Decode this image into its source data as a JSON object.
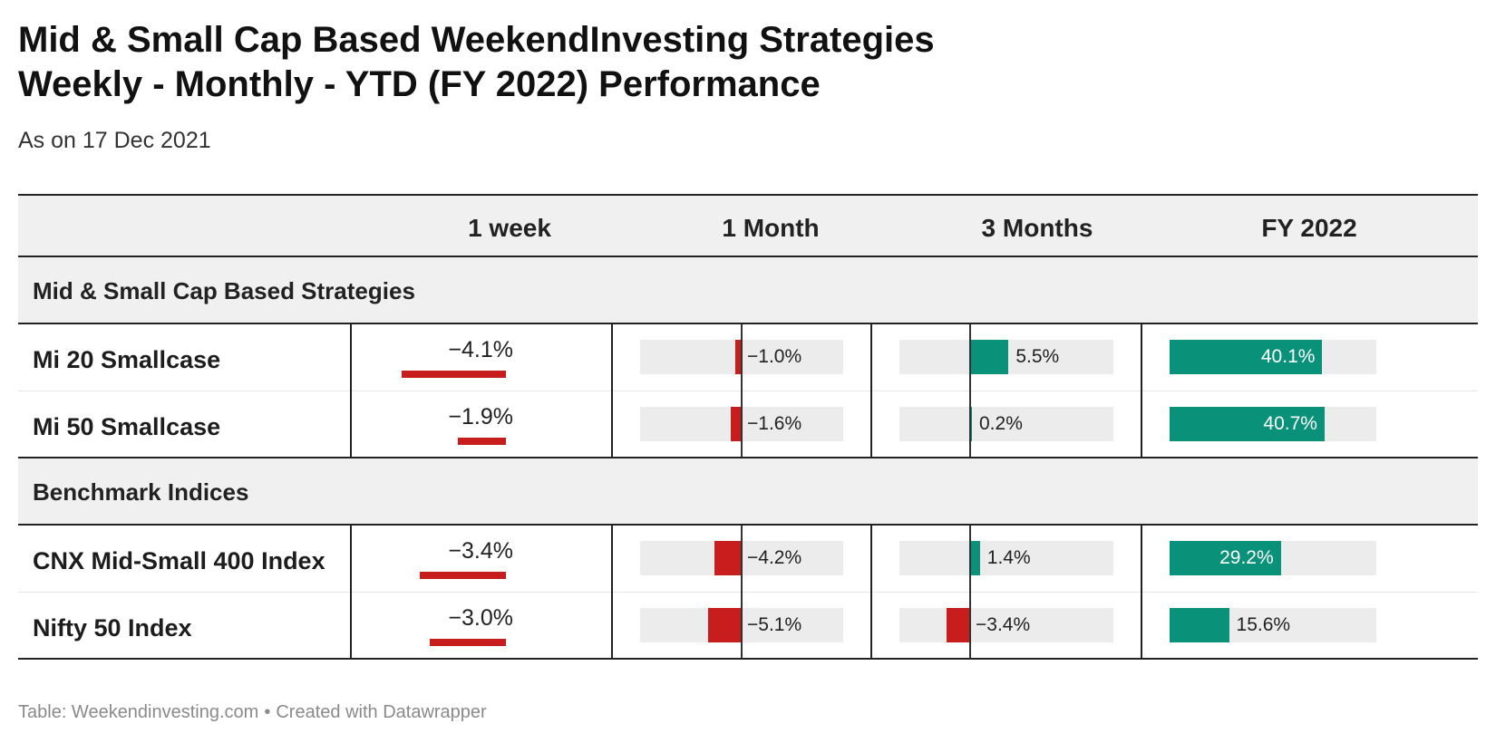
{
  "title_line1": "Mid & Small Cap Based WeekendInvesting Strategies",
  "title_line2": "Weekly - Monthly - YTD (FY 2022) Performance",
  "subtitle": "As on 17 Dec 2021",
  "footer": {
    "source": "Table: Weekendinvesting.com",
    "separator": "•",
    "credit": "Created with Datawrapper"
  },
  "colors": {
    "negative": "#c71e1d",
    "positive": "#09917a",
    "track": "#ececec",
    "header_bg": "#f0f0f0"
  },
  "chart_data": {
    "type": "table",
    "columns": [
      "1 week",
      "1 Month",
      "3 Months",
      "FY 2022"
    ],
    "unit": "%",
    "groups": [
      {
        "name": "Mid & Small Cap Based Strategies",
        "rows": [
          {
            "label": "Mi 20 Smallcase",
            "values": [
              -4.1,
              -1.0,
              5.5,
              40.1
            ],
            "display": [
              "−4.1%",
              "−1.0%",
              "5.5%",
              "40.1%"
            ]
          },
          {
            "label": "Mi 50 Smallcase",
            "values": [
              -1.9,
              -1.6,
              0.2,
              40.7
            ],
            "display": [
              "−1.9%",
              "−1.6%",
              "0.2%",
              "40.7%"
            ]
          }
        ]
      },
      {
        "name": "Benchmark Indices",
        "rows": [
          {
            "label": "CNX Mid-Small 400 Index",
            "values": [
              -3.4,
              -4.2,
              1.4,
              29.2
            ],
            "display": [
              "−3.4%",
              "−4.2%",
              "1.4%",
              "29.2%"
            ]
          },
          {
            "label": "Nifty 50 Index",
            "values": [
              -3.0,
              -5.1,
              -3.4,
              15.6
            ],
            "display": [
              "−3.0%",
              "−5.1%",
              "−3.4%",
              "15.6%"
            ]
          }
        ]
      }
    ]
  }
}
